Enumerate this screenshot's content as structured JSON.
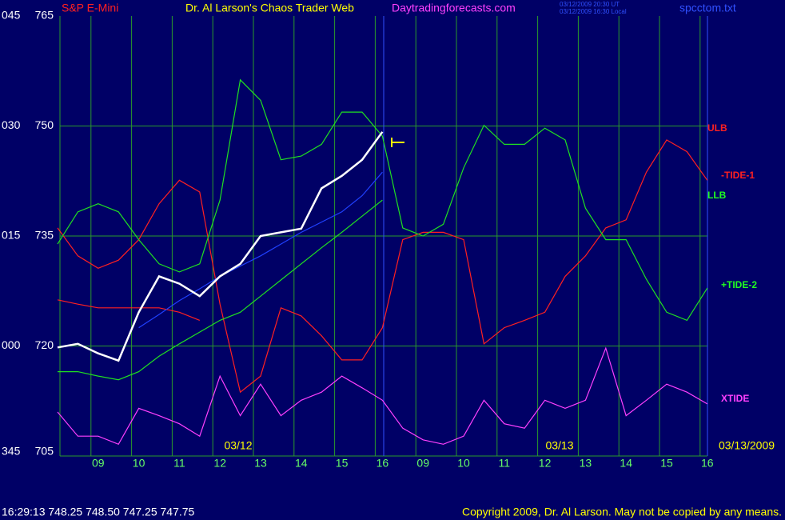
{
  "chart_data": {
    "type": "line",
    "title": "Dr. Al Larson's Chaos Trader Web",
    "symbol": "S&P E-Mini",
    "website": "Daytradingforecasts.com",
    "timestamp_ut": "03/12/2009 20:30 UT",
    "timestamp_local": "03/12/2009 16:30 Local",
    "filename": "spcctom.txt",
    "ylim": [
      705,
      765
    ],
    "yticks": [
      765,
      750,
      735,
      720,
      705
    ],
    "ytick_prefixes": [
      "045",
      "030",
      "015",
      "000",
      "345"
    ],
    "grid": true,
    "categories": [
      null,
      null,
      "09",
      null,
      "10",
      null,
      "11",
      null,
      "12",
      null,
      "13",
      null,
      "14",
      null,
      "15",
      null,
      "16",
      null,
      "09",
      null,
      "10",
      null,
      "11",
      null,
      "12",
      null,
      "13",
      null,
      "14",
      null,
      "15",
      null,
      "16"
    ],
    "date_labels": [
      "03/12",
      "03/13",
      "03/13/2009"
    ],
    "annotations": [
      {
        "text": "ULB",
        "color": "#ff2020"
      },
      {
        "text": "-TIDE-1",
        "color": "#ff2020"
      },
      {
        "text": "LLB",
        "color": "#20ff20"
      },
      {
        "text": "+TIDE-2",
        "color": "#20ff20"
      },
      {
        "text": "XTIDE",
        "color": "#ff40ff"
      }
    ],
    "quote": "16:29:13  748.25 748.50 747.25 747.75",
    "copyright": "Copyright 2009, Dr. Al Larson. May not be copied by any means.",
    "series": [
      {
        "color": "#ff2020",
        "values": [
          736.1,
          732.3,
          730.6,
          731.7,
          734.5,
          739.4,
          742.6,
          741.0,
          725.7,
          713.7,
          715.9,
          725.2,
          724.1,
          721.4,
          718.1,
          718.1,
          722.5,
          734.5,
          735.5,
          735.5,
          734.5,
          720.3,
          722.5,
          723.5,
          724.6,
          729.5,
          732.3,
          736.1,
          737.2,
          743.7,
          748.1,
          746.5,
          742.6
        ]
      },
      {
        "color": "#ff2020",
        "values": [
          726.3,
          725.7,
          725.2,
          725.2,
          725.2,
          725.2,
          724.6,
          723.5,
          null,
          null,
          null,
          null,
          null,
          null,
          null,
          null,
          null,
          null,
          null,
          null,
          null,
          null,
          null,
          null,
          null,
          null,
          null,
          null,
          null,
          null,
          null,
          null,
          null
        ]
      },
      {
        "color": "#20e020",
        "values": [
          733.9,
          738.3,
          739.4,
          738.3,
          734.5,
          731.2,
          730.1,
          731.2,
          739.9,
          756.3,
          753.5,
          745.4,
          745.9,
          747.5,
          751.9,
          751.9,
          748.6,
          736.1,
          735.0,
          736.6,
          744.3,
          750.1,
          747.5,
          747.5,
          749.7,
          748.1,
          738.8,
          734.5,
          734.5,
          729.1,
          724.6,
          723.5,
          727.9
        ]
      },
      {
        "color": "#20e020",
        "values": [
          716.5,
          716.5,
          715.9,
          715.4,
          716.5,
          718.6,
          720.3,
          721.9,
          723.5,
          724.6,
          726.8,
          729.0,
          731.2,
          733.4,
          735.5,
          737.7,
          739.9,
          null,
          null,
          null,
          null,
          null,
          null,
          null,
          null,
          null,
          null,
          null,
          null,
          null,
          null,
          null,
          null
        ]
      },
      {
        "color": "#2040ff",
        "values": [
          null,
          null,
          null,
          null,
          722.5,
          724.3,
          726.2,
          727.8,
          729.5,
          730.9,
          732.3,
          733.9,
          735.5,
          736.9,
          738.3,
          740.5,
          743.7,
          null,
          null,
          null,
          null,
          null,
          null,
          null,
          null,
          null,
          null,
          null,
          null,
          null,
          null,
          null,
          null
        ]
      },
      {
        "color": "#ff40ff",
        "values": [
          711.0,
          707.7,
          707.7,
          706.6,
          711.5,
          710.5,
          709.4,
          707.7,
          715.9,
          710.5,
          714.8,
          710.5,
          712.6,
          713.7,
          715.9,
          714.3,
          712.6,
          708.8,
          707.2,
          706.6,
          707.7,
          712.6,
          709.4,
          708.8,
          712.6,
          711.5,
          712.6,
          719.7,
          710.5,
          712.6,
          714.8,
          713.7,
          712.1
        ]
      },
      {
        "color": "#ffffff",
        "values": [
          719.8,
          720.3,
          719.0,
          718.0,
          724.6,
          729.5,
          728.5,
          726.8,
          729.5,
          731.2,
          735.0,
          735.5,
          736.0,
          741.5,
          743.2,
          745.4,
          749.2,
          null,
          null,
          null,
          null,
          null,
          null,
          null,
          null,
          null,
          null,
          null,
          null,
          null,
          null,
          null,
          null
        ]
      }
    ]
  }
}
